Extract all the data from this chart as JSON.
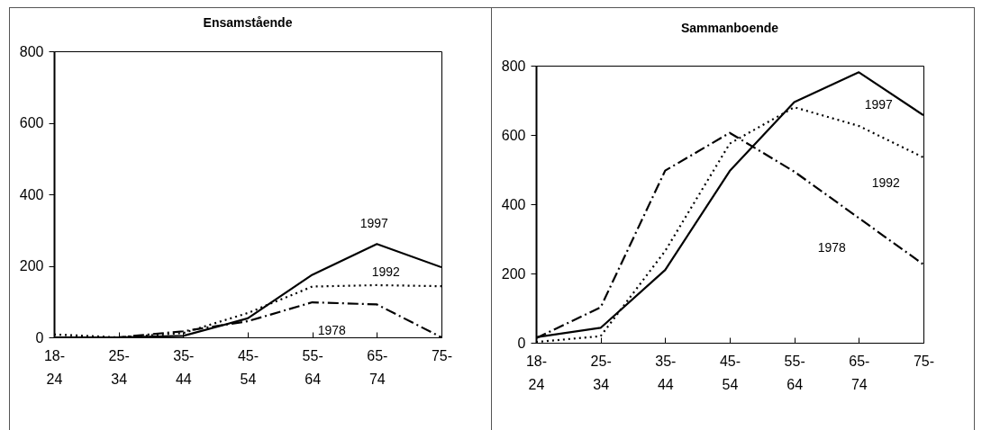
{
  "chart_data": [
    {
      "type": "line",
      "title": "Ensamstående",
      "categories": [
        "18-24",
        "25-34",
        "35-44",
        "45-54",
        "55-64",
        "65-74",
        "75-"
      ],
      "ylim": [
        0,
        800
      ],
      "yticks": [
        0,
        200,
        400,
        600,
        800
      ],
      "series": [
        {
          "name": "1997",
          "color": "#000000",
          "line_style": "solid",
          "values": [
            0,
            0,
            4,
            53,
            175,
            261,
            196
          ]
        },
        {
          "name": "1992",
          "color": "#000000",
          "line_style": "dotted",
          "values": [
            8,
            0,
            12,
            68,
            142,
            146,
            143
          ]
        },
        {
          "name": "1978",
          "color": "#000000",
          "line_style": "dashed",
          "values": [
            0,
            0,
            17,
            45,
            98,
            92,
            0
          ]
        }
      ]
    },
    {
      "type": "line",
      "title": "Sammanboende",
      "categories": [
        "18-24",
        "25-34",
        "35-44",
        "45-54",
        "55-64",
        "65-74",
        "75-"
      ],
      "ylim": [
        0,
        800
      ],
      "yticks": [
        0,
        200,
        400,
        600,
        800
      ],
      "series": [
        {
          "name": "1997",
          "color": "#000000",
          "line_style": "solid",
          "values": [
            16,
            43,
            210,
            496,
            695,
            781,
            657
          ]
        },
        {
          "name": "1992",
          "color": "#000000",
          "line_style": "dotted",
          "values": [
            2,
            19,
            265,
            575,
            680,
            626,
            535
          ]
        },
        {
          "name": "1978",
          "color": "#000000",
          "line_style": "dashed",
          "values": [
            13,
            102,
            497,
            606,
            494,
            360,
            226
          ]
        }
      ]
    }
  ]
}
